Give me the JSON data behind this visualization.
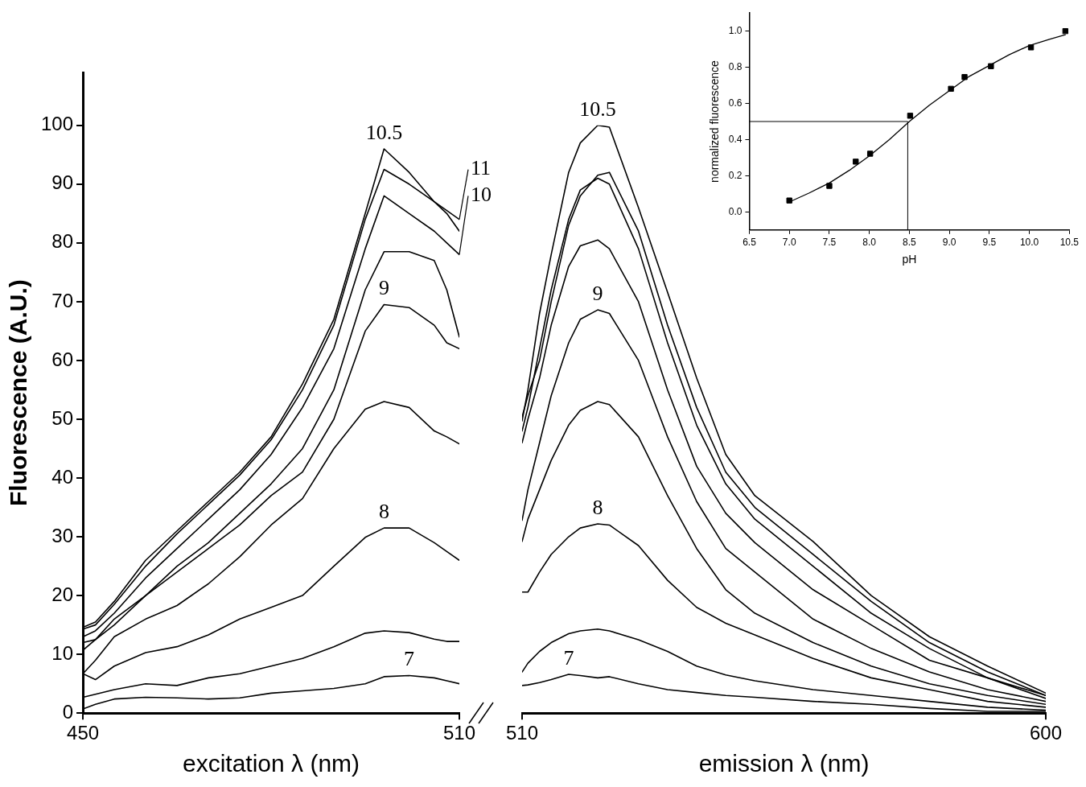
{
  "chart_data": [
    {
      "type": "line",
      "ylabel": "Fluorescence (A.U.)",
      "xlabel": "excitation λ (nm)",
      "x": [
        450,
        452,
        455,
        460,
        465,
        470,
        475,
        480,
        485,
        490,
        495,
        498,
        502,
        506,
        508,
        510
      ],
      "xlim": [
        450,
        510
      ],
      "xticks": [
        450,
        510
      ],
      "ylim": [
        0,
        109
      ],
      "yticks": [
        0,
        10,
        20,
        30,
        40,
        50,
        60,
        70,
        80,
        90,
        100
      ],
      "grid": false,
      "legend": false,
      "marker": "none",
      "line_style": "solid",
      "series": [
        {
          "name": "10.5",
          "color": "#000000",
          "values": [
            14.6,
            15.5,
            19,
            26,
            31,
            36,
            41,
            47,
            56,
            67,
            85,
            96,
            92,
            87,
            85,
            82
          ]
        },
        {
          "name": "11",
          "color": "#000000",
          "values": [
            14.3,
            15,
            18.5,
            25,
            30.5,
            35.5,
            40.5,
            46.5,
            55,
            66,
            84,
            92.5,
            90,
            87,
            85.5,
            84
          ]
        },
        {
          "name": "10",
          "color": "#000000",
          "values": [
            13,
            14,
            17,
            23,
            28,
            33,
            38,
            44,
            52,
            62,
            79,
            88,
            85,
            82,
            80,
            78
          ]
        },
        {
          "color": "#000000",
          "values": [
            12,
            12.5,
            15,
            20,
            25,
            29,
            34,
            39,
            45,
            55,
            72,
            78.5,
            78.5,
            77,
            72,
            64
          ]
        },
        {
          "name": "9",
          "color": "#000000",
          "values": [
            10.7,
            12.5,
            16,
            20,
            24,
            28,
            32,
            37,
            41,
            50,
            65,
            69.5,
            69,
            66,
            63,
            62
          ]
        },
        {
          "color": "#000000",
          "values": [
            6.7,
            9,
            13,
            16,
            18.3,
            22,
            26.6,
            32,
            36.5,
            45,
            51.7,
            53,
            52,
            48,
            47,
            45.8
          ]
        },
        {
          "name": "8",
          "color": "#000000",
          "values": [
            6.7,
            5.7,
            8,
            10.3,
            11.3,
            13.3,
            16,
            18,
            20,
            25,
            29.9,
            31.5,
            31.5,
            29,
            27.5,
            26
          ]
        },
        {
          "color": "#000000",
          "values": [
            2.7,
            3.2,
            4,
            5,
            4.7,
            6,
            6.7,
            8,
            9.3,
            11.3,
            13.6,
            14,
            13.7,
            12.6,
            12.2,
            12.2
          ]
        },
        {
          "name": "7",
          "color": "#000000",
          "values": [
            0.7,
            1.5,
            2.4,
            2.7,
            2.6,
            2.4,
            2.6,
            3.4,
            3.8,
            4.2,
            5,
            6.2,
            6.4,
            6,
            5.5,
            5
          ]
        }
      ]
    },
    {
      "type": "line",
      "xlabel": "emission λ (nm)",
      "x": [
        510,
        511,
        513,
        515,
        518,
        520,
        523,
        525,
        530,
        535,
        540,
        545,
        550,
        560,
        570,
        580,
        590,
        600
      ],
      "xlim": [
        510,
        600
      ],
      "xticks": [
        510,
        600
      ],
      "ylim": [
        0,
        100
      ],
      "yticks": [
        0,
        10,
        20,
        30,
        40,
        50,
        60,
        70,
        80,
        90,
        100
      ],
      "tick_labels": "x",
      "grid": false,
      "legend": false,
      "marker": "none",
      "line_style": "solid",
      "series": [
        {
          "name": "10.5",
          "color": "#000000",
          "values": [
            49.7,
            55,
            68,
            78,
            92,
            97,
            100,
            99.7,
            86,
            71.6,
            57,
            44,
            37,
            29.2,
            20,
            13,
            8,
            3.4
          ]
        },
        {
          "color": "#000000",
          "values": [
            50.4,
            54,
            60,
            70,
            83,
            88,
            91.5,
            92,
            82,
            66,
            52,
            41,
            35,
            27,
            19,
            12,
            7,
            3
          ]
        },
        {
          "color": "#000000",
          "values": [
            48,
            52,
            62,
            72,
            84,
            89,
            91,
            90,
            79,
            63,
            49,
            39,
            33,
            25,
            17,
            11,
            6,
            2.5
          ]
        },
        {
          "color": "#000000",
          "values": [
            46,
            50,
            57,
            66,
            76,
            79.5,
            80.5,
            79,
            70,
            55,
            42,
            34,
            29,
            21,
            15,
            9,
            6,
            3
          ]
        },
        {
          "name": "9",
          "color": "#000000",
          "values": [
            32.8,
            38,
            46,
            54,
            63,
            67,
            68.6,
            68,
            60,
            47,
            36,
            28,
            24,
            16,
            11,
            7,
            4,
            2
          ]
        },
        {
          "color": "#000000",
          "values": [
            29.2,
            33,
            38,
            43,
            49,
            51.5,
            53,
            52.5,
            47,
            37,
            28,
            21,
            17,
            12,
            8,
            5,
            3,
            1.5
          ]
        },
        {
          "name": "8",
          "color": "#000000",
          "values": [
            20.6,
            20.6,
            24,
            27,
            30,
            31.5,
            32.2,
            32,
            28.5,
            22.6,
            18,
            15.3,
            13.3,
            9.3,
            6,
            4,
            2,
            1
          ]
        },
        {
          "color": "#000000",
          "values": [
            7,
            8.5,
            10.5,
            12,
            13.5,
            14,
            14.3,
            14,
            12.5,
            10.5,
            8,
            6.5,
            5.5,
            4,
            3,
            2,
            1,
            0.5
          ]
        },
        {
          "name": "7",
          "color": "#000000",
          "values": [
            4.7,
            4.8,
            5.2,
            5.7,
            6.6,
            6.4,
            6,
            6.2,
            5,
            4,
            3.5,
            3,
            2.7,
            2,
            1.5,
            0.8,
            0.3,
            0.3
          ]
        }
      ]
    },
    {
      "type": "scatter",
      "xlabel": "pH",
      "ylabel": "normalized fluorescence",
      "x": [
        7.0,
        7.5,
        7.83,
        8.01,
        8.51,
        9.02,
        9.19,
        9.52,
        10.02,
        10.45
      ],
      "xlim": [
        6.5,
        10.5
      ],
      "xticks": [
        {
          "value": 6.5,
          "label": "6.5"
        },
        {
          "value": 7,
          "label": "7.0"
        },
        {
          "value": 7.5,
          "label": "7.5"
        },
        {
          "value": 8,
          "label": "8.0"
        },
        {
          "value": 8.5,
          "label": "8.5"
        },
        {
          "value": 9,
          "label": "9.0"
        },
        {
          "value": 9.5,
          "label": "9.5"
        },
        {
          "value": 10,
          "label": "10.0"
        },
        {
          "value": 10.5,
          "label": "10.5"
        }
      ],
      "ylim": [
        -0.1,
        1.1
      ],
      "yticks": [
        {
          "value": 0,
          "label": "0.0"
        },
        {
          "value": 0.2,
          "label": "0.2"
        },
        {
          "value": 0.4,
          "label": "0.4"
        },
        {
          "value": 0.6,
          "label": "0.6"
        },
        {
          "value": 0.8,
          "label": "0.8"
        },
        {
          "value": 1,
          "label": "1.0"
        }
      ],
      "grid": false,
      "legend": false,
      "marker": "square",
      "ref_lines": [
        {
          "axis": "y",
          "value": 0.5
        },
        {
          "axis": "x",
          "value": 8.48
        }
      ],
      "series": [
        {
          "color": "#000000",
          "values": [
            0.063,
            0.144,
            0.278,
            0.322,
            0.532,
            0.681,
            0.746,
            0.806,
            0.91,
            1.0
          ]
        },
        {
          "type": "line",
          "color": "#000000",
          "marker": "none",
          "x": [
            7.0,
            7.25,
            7.5,
            7.75,
            8.0,
            8.25,
            8.5,
            8.75,
            9.0,
            9.25,
            9.5,
            9.75,
            10.0,
            10.25,
            10.45
          ],
          "values": [
            0.055,
            0.105,
            0.16,
            0.23,
            0.31,
            0.4,
            0.5,
            0.59,
            0.67,
            0.75,
            0.81,
            0.87,
            0.92,
            0.955,
            0.98
          ]
        }
      ]
    }
  ]
}
